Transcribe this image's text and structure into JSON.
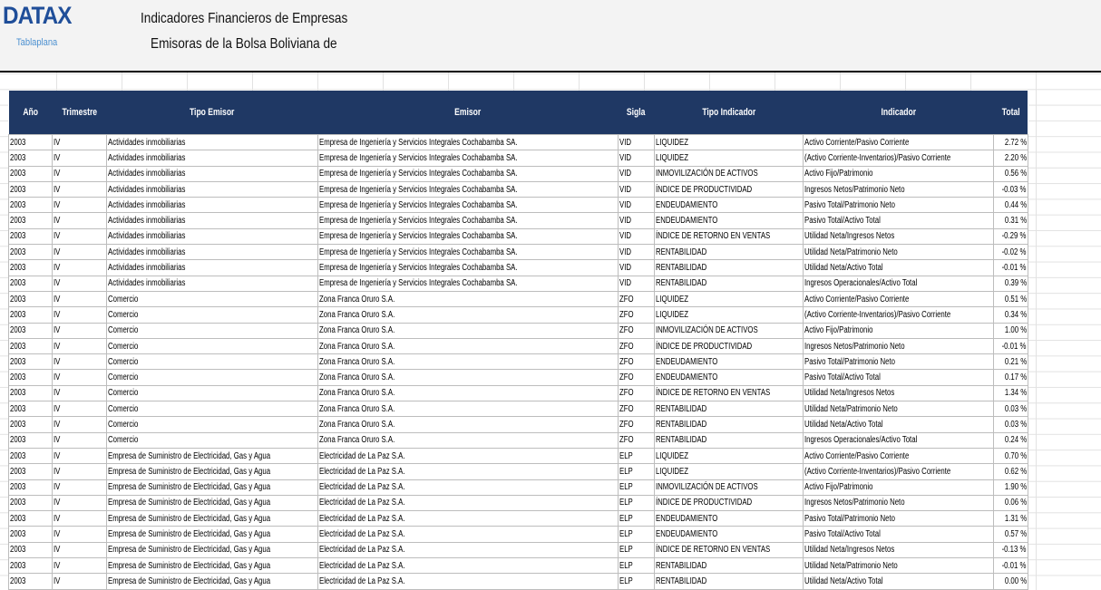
{
  "header": {
    "logo": "DATAX",
    "logo_sub": "Tablaplana",
    "title": "Indicadores Financieros de Empresas",
    "subtitle": "Emisoras de la Bolsa Boliviana de"
  },
  "table": {
    "columns": [
      "Año",
      "Trimestre",
      "Tipo Emisor",
      "Emisor",
      "Sigla",
      "Tipo Indicador",
      "Indicador",
      "Total"
    ],
    "rows": [
      [
        "2003",
        "IV",
        "Actividades inmobiliarias",
        "Empresa de Ingeniería y Servicios Integrales Cochabamba SA.",
        "VID",
        "LIQUIDEZ",
        "Activo Corriente/Pasivo Corriente",
        "2.72 %"
      ],
      [
        "2003",
        "IV",
        "Actividades inmobiliarias",
        "Empresa de Ingeniería y Servicios Integrales Cochabamba SA.",
        "VID",
        "LIQUIDEZ",
        "(Activo Corriente-Inventarios)/Pasivo Corriente",
        "2.20 %"
      ],
      [
        "2003",
        "IV",
        "Actividades inmobiliarias",
        "Empresa de Ingeniería y Servicios Integrales Cochabamba SA.",
        "VID",
        "INMOVILIZACIÓN DE ACTIVOS",
        "Activo Fijo/Patrimonio",
        "0.56 %"
      ],
      [
        "2003",
        "IV",
        "Actividades inmobiliarias",
        "Empresa de Ingeniería y Servicios Integrales Cochabamba SA.",
        "VID",
        "ÍNDICE DE PRODUCTIVIDAD",
        "Ingresos Netos/Patrimonio Neto",
        "-0.03 %"
      ],
      [
        "2003",
        "IV",
        "Actividades inmobiliarias",
        "Empresa de Ingeniería y Servicios Integrales Cochabamba SA.",
        "VID",
        "ENDEUDAMIENTO",
        "Pasivo Total/Patrimonio Neto",
        "0.44 %"
      ],
      [
        "2003",
        "IV",
        "Actividades inmobiliarias",
        "Empresa de Ingeniería y Servicios Integrales Cochabamba SA.",
        "VID",
        "ENDEUDAMIENTO",
        "Pasivo Total/Activo Total",
        "0.31 %"
      ],
      [
        "2003",
        "IV",
        "Actividades inmobiliarias",
        "Empresa de Ingeniería y Servicios Integrales Cochabamba SA.",
        "VID",
        "ÍNDICE DE RETORNO EN VENTAS",
        "Utilidad Neta/Ingresos Netos",
        "-0.29 %"
      ],
      [
        "2003",
        "IV",
        "Actividades inmobiliarias",
        "Empresa de Ingeniería y Servicios Integrales Cochabamba SA.",
        "VID",
        "RENTABILIDAD",
        "Utilidad Neta/Patrimonio Neto",
        "-0.02 %"
      ],
      [
        "2003",
        "IV",
        "Actividades inmobiliarias",
        "Empresa de Ingeniería y Servicios Integrales Cochabamba SA.",
        "VID",
        "RENTABILIDAD",
        "Utilidad Neta/Activo Total",
        "-0.01 %"
      ],
      [
        "2003",
        "IV",
        "Actividades inmobiliarias",
        "Empresa de Ingeniería y Servicios Integrales Cochabamba SA.",
        "VID",
        "RENTABILIDAD",
        "Ingresos Operacionales/Activo Total",
        "0.39 %"
      ],
      [
        "2003",
        "IV",
        "Comercio",
        "Zona Franca Oruro S.A.",
        "ZFO",
        "LIQUIDEZ",
        "Activo Corriente/Pasivo Corriente",
        "0.51 %"
      ],
      [
        "2003",
        "IV",
        "Comercio",
        "Zona Franca Oruro S.A.",
        "ZFO",
        "LIQUIDEZ",
        "(Activo Corriente-Inventarios)/Pasivo Corriente",
        "0.34 %"
      ],
      [
        "2003",
        "IV",
        "Comercio",
        "Zona Franca Oruro S.A.",
        "ZFO",
        "INMOVILIZACIÓN DE ACTIVOS",
        "Activo Fijo/Patrimonio",
        "1.00 %"
      ],
      [
        "2003",
        "IV",
        "Comercio",
        "Zona Franca Oruro S.A.",
        "ZFO",
        "ÍNDICE DE PRODUCTIVIDAD",
        "Ingresos Netos/Patrimonio Neto",
        "-0.01 %"
      ],
      [
        "2003",
        "IV",
        "Comercio",
        "Zona Franca Oruro S.A.",
        "ZFO",
        "ENDEUDAMIENTO",
        "Pasivo Total/Patrimonio Neto",
        "0.21 %"
      ],
      [
        "2003",
        "IV",
        "Comercio",
        "Zona Franca Oruro S.A.",
        "ZFO",
        "ENDEUDAMIENTO",
        "Pasivo Total/Activo Total",
        "0.17 %"
      ],
      [
        "2003",
        "IV",
        "Comercio",
        "Zona Franca Oruro S.A.",
        "ZFO",
        "ÍNDICE DE RETORNO EN VENTAS",
        "Utilidad Neta/Ingresos Netos",
        "1.34 %"
      ],
      [
        "2003",
        "IV",
        "Comercio",
        "Zona Franca Oruro S.A.",
        "ZFO",
        "RENTABILIDAD",
        "Utilidad Neta/Patrimonio Neto",
        "0.03 %"
      ],
      [
        "2003",
        "IV",
        "Comercio",
        "Zona Franca Oruro S.A.",
        "ZFO",
        "RENTABILIDAD",
        "Utilidad Neta/Activo Total",
        "0.03 %"
      ],
      [
        "2003",
        "IV",
        "Comercio",
        "Zona Franca Oruro S.A.",
        "ZFO",
        "RENTABILIDAD",
        "Ingresos Operacionales/Activo Total",
        "0.24 %"
      ],
      [
        "2003",
        "IV",
        "Empresa de Suministro de Electricidad, Gas y Agua",
        "Electricidad de La Paz S.A.",
        "ELP",
        "LIQUIDEZ",
        "Activo Corriente/Pasivo Corriente",
        "0.70 %"
      ],
      [
        "2003",
        "IV",
        "Empresa de Suministro de Electricidad, Gas y Agua",
        "Electricidad de La Paz S.A.",
        "ELP",
        "LIQUIDEZ",
        "(Activo Corriente-Inventarios)/Pasivo Corriente",
        "0.62 %"
      ],
      [
        "2003",
        "IV",
        "Empresa de Suministro de Electricidad, Gas y Agua",
        "Electricidad de La Paz S.A.",
        "ELP",
        "INMOVILIZACIÓN DE ACTIVOS",
        "Activo Fijo/Patrimonio",
        "1.90 %"
      ],
      [
        "2003",
        "IV",
        "Empresa de Suministro de Electricidad, Gas y Agua",
        "Electricidad de La Paz S.A.",
        "ELP",
        "ÍNDICE DE PRODUCTIVIDAD",
        "Ingresos Netos/Patrimonio Neto",
        "0.06 %"
      ],
      [
        "2003",
        "IV",
        "Empresa de Suministro de Electricidad, Gas y Agua",
        "Electricidad de La Paz S.A.",
        "ELP",
        "ENDEUDAMIENTO",
        "Pasivo Total/Patrimonio Neto",
        "1.31 %"
      ],
      [
        "2003",
        "IV",
        "Empresa de Suministro de Electricidad, Gas y Agua",
        "Electricidad de La Paz S.A.",
        "ELP",
        "ENDEUDAMIENTO",
        "Pasivo Total/Activo Total",
        "0.57 %"
      ],
      [
        "2003",
        "IV",
        "Empresa de Suministro de Electricidad, Gas y Agua",
        "Electricidad de La Paz S.A.",
        "ELP",
        "ÍNDICE DE RETORNO EN VENTAS",
        "Utilidad Neta/Ingresos Netos",
        "-0.13 %"
      ],
      [
        "2003",
        "IV",
        "Empresa de Suministro de Electricidad, Gas y Agua",
        "Electricidad de La Paz S.A.",
        "ELP",
        "RENTABILIDAD",
        "Utilidad Neta/Patrimonio Neto",
        "-0.01 %"
      ],
      [
        "2003",
        "IV",
        "Empresa de Suministro de Electricidad, Gas y Agua",
        "Electricidad de La Paz S.A.",
        "ELP",
        "RENTABILIDAD",
        "Utilidad Neta/Activo Total",
        "0.00 %"
      ]
    ]
  }
}
